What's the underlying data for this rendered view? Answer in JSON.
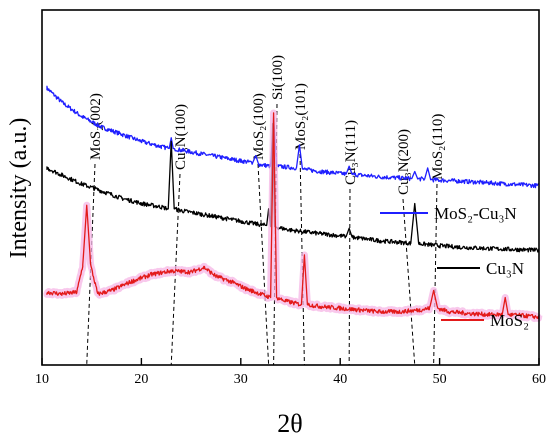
{
  "chart_data": {
    "type": "line",
    "xlabel": "2θ",
    "ylabel": "Intensity (a.u.)",
    "xlim": [
      10,
      60
    ],
    "xticks": [
      10,
      20,
      30,
      40,
      50,
      60
    ],
    "y_ticks_shown": false,
    "grid": false,
    "legend_placement": "right",
    "series": [
      {
        "name": "MoS₂-Cu₃N",
        "color": "#1f1fff",
        "x": [
          10.5,
          12,
          14,
          16,
          18,
          20,
          22,
          22.8,
          23.0,
          23.2,
          24,
          26,
          28,
          30,
          31.2,
          31.5,
          31.8,
          33.0,
          33.3,
          33.6,
          35.6,
          35.9,
          36.2,
          38,
          40.6,
          40.9,
          41.2,
          44,
          47.2,
          47.5,
          47.8,
          48.5,
          48.8,
          49.1,
          52,
          55,
          58,
          60
        ],
        "values": [
          0.78,
          0.74,
          0.7,
          0.67,
          0.65,
          0.63,
          0.615,
          0.61,
          0.64,
          0.61,
          0.605,
          0.595,
          0.585,
          0.575,
          0.57,
          0.59,
          0.565,
          0.56,
          0.7,
          0.56,
          0.555,
          0.62,
          0.552,
          0.545,
          0.538,
          0.56,
          0.537,
          0.53,
          0.525,
          0.545,
          0.524,
          0.524,
          0.555,
          0.522,
          0.518,
          0.513,
          0.508,
          0.505
        ]
      },
      {
        "name": "Cu₃N",
        "color": "#000000",
        "x": [
          10.5,
          12,
          14,
          16,
          18,
          20,
          22,
          22.7,
          23.0,
          23.3,
          24,
          26,
          28,
          30,
          32,
          32.6,
          32.8,
          33.0,
          33.2,
          33.4,
          33.6,
          35,
          38,
          40.6,
          40.9,
          41.2,
          44,
          47.1,
          47.5,
          47.9,
          50,
          52,
          55,
          58,
          60
        ],
        "values": [
          0.555,
          0.535,
          0.51,
          0.49,
          0.47,
          0.455,
          0.445,
          0.44,
          0.63,
          0.44,
          0.435,
          0.425,
          0.415,
          0.405,
          0.395,
          0.393,
          0.44,
          0.39,
          0.68,
          0.39,
          0.388,
          0.38,
          0.37,
          0.362,
          0.385,
          0.36,
          0.35,
          0.343,
          0.455,
          0.342,
          0.336,
          0.332,
          0.328,
          0.325,
          0.323
        ]
      },
      {
        "name": "MoS₂",
        "color": "#e31a1a",
        "x": [
          10.5,
          12,
          13.5,
          14.1,
          14.5,
          14.9,
          15.6,
          17,
          19,
          21,
          23,
          25,
          26.3,
          27.5,
          29,
          30.5,
          32,
          33.0,
          33.3,
          33.6,
          34.5,
          36.1,
          36.4,
          36.7,
          38,
          40,
          42,
          44,
          46,
          48,
          49.0,
          49.4,
          49.8,
          51,
          53,
          55,
          56.3,
          56.6,
          56.9,
          58,
          60
        ],
        "values": [
          0.205,
          0.2,
          0.205,
          0.28,
          0.45,
          0.28,
          0.2,
          0.21,
          0.235,
          0.255,
          0.265,
          0.262,
          0.275,
          0.25,
          0.235,
          0.215,
          0.2,
          0.19,
          0.71,
          0.19,
          0.18,
          0.17,
          0.31,
          0.17,
          0.165,
          0.16,
          0.155,
          0.15,
          0.15,
          0.155,
          0.16,
          0.21,
          0.16,
          0.15,
          0.145,
          0.142,
          0.142,
          0.19,
          0.142,
          0.14,
          0.135
        ]
      }
    ],
    "annotations": [
      {
        "label": "MoS₂(002)",
        "x": 14.5
      },
      {
        "label": "Cu₃N(100)",
        "x": 23.0
      },
      {
        "label": "MoS₂(100)",
        "x": 32.8
      },
      {
        "label": "Si(100)",
        "x": 33.3
      },
      {
        "label": "MoS₂(101)",
        "x": 36.4
      },
      {
        "label": "Cu₃N(111)",
        "x": 40.9
      },
      {
        "label": "Cu₃N(200)",
        "x": 47.5
      },
      {
        "label": "MoS₂(110)",
        "x": 49.4
      }
    ]
  }
}
